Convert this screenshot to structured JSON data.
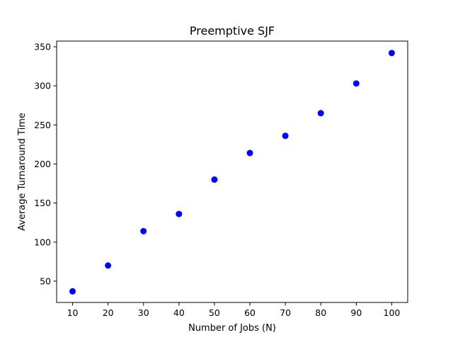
{
  "chart_data": {
    "type": "scatter",
    "title": "Preemptive SJF",
    "xlabel": "Number of Jobs (N)",
    "ylabel": "Average Turnaround Time",
    "x": [
      10,
      20,
      30,
      40,
      50,
      60,
      70,
      80,
      90,
      100
    ],
    "y": [
      37,
      70,
      114,
      136,
      180,
      214,
      236,
      265,
      303,
      342
    ],
    "xlim": [
      5.5,
      104.5
    ],
    "ylim": [
      22.75,
      357.25
    ],
    "xticks": [
      10,
      20,
      30,
      40,
      50,
      60,
      70,
      80,
      90,
      100
    ],
    "yticks": [
      50,
      100,
      150,
      200,
      250,
      300,
      350
    ],
    "marker_color": "#0000ff",
    "grid": false,
    "legend": "none"
  }
}
